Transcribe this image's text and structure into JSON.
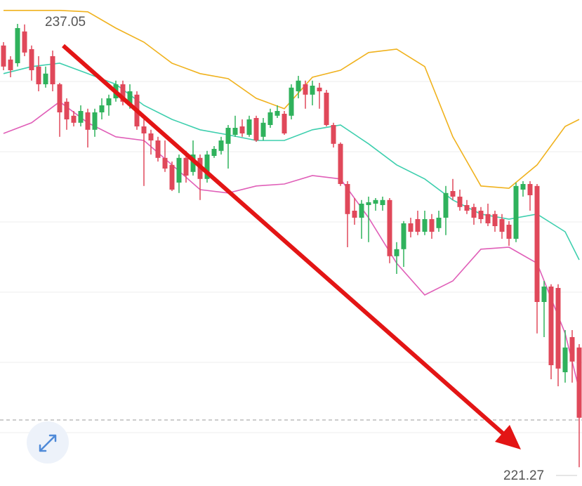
{
  "chart_data": {
    "type": "candlestick",
    "open": [
      236.28,
      235.78,
      235.65,
      236.78,
      236.15,
      235.53,
      234.9,
      235.9,
      234.9,
      234.28,
      233.78,
      233.53,
      233.9,
      233.28,
      233.9,
      234.15,
      234.4,
      234.9,
      234.15,
      234.53,
      233.4,
      233.15,
      232.9,
      232.28,
      232.03,
      231.4,
      232.28,
      231.78,
      232.28,
      231.53,
      232.35,
      232.53,
      232.78,
      233.1,
      233.4,
      233.1,
      233.7,
      233.03,
      233.45,
      233.78,
      233.85,
      233.78,
      234.65,
      234.9,
      234.53,
      234.78,
      234.6,
      233.45,
      232.78,
      231.35,
      230.4,
      230.15,
      230.6,
      230.65,
      230.6,
      230.78,
      228.78,
      229.03,
      229.95,
      230.1,
      229.65,
      230.1,
      229.78,
      230.15,
      231.1,
      230.9,
      230.6,
      230.53,
      230.4,
      230.28,
      230.28,
      230.1,
      229.9,
      229.4,
      231.15,
      231.35,
      231.28,
      227.15,
      227.7,
      227.65,
      224.65,
      225.9,
      225.53
    ],
    "high": [
      236.4,
      235.9,
      237.05,
      237.03,
      236.28,
      235.9,
      235.53,
      236.1,
      234.95,
      234.4,
      233.95,
      234.15,
      234.03,
      234.03,
      234.4,
      234.53,
      235.03,
      235.03,
      234.9,
      234.65,
      233.65,
      233.28,
      233.03,
      232.9,
      232.15,
      232.4,
      232.53,
      232.9,
      232.4,
      232.53,
      232.7,
      233.03,
      233.45,
      233.78,
      233.65,
      233.78,
      233.78,
      233.7,
      234.03,
      234.15,
      233.95,
      234.9,
      235.2,
      235.03,
      235.03,
      234.95,
      234.7,
      233.53,
      232.83,
      231.45,
      230.85,
      230.78,
      230.9,
      230.85,
      230.9,
      230.85,
      229.28,
      230.03,
      230.15,
      230.4,
      230.4,
      230.28,
      230.4,
      231.28,
      231.53,
      231.15,
      230.78,
      230.65,
      230.53,
      230.65,
      230.4,
      230.28,
      230.03,
      231.4,
      231.45,
      231.45,
      231.35,
      227.9,
      227.78,
      227.78,
      226.15,
      226.15,
      225.65
    ],
    "low": [
      235.4,
      235.15,
      235.53,
      235.9,
      235.03,
      234.65,
      234.78,
      234.65,
      233.03,
      233.28,
      233.4,
      233.4,
      232.65,
      233.03,
      233.65,
      233.78,
      234.28,
      234.15,
      234.03,
      233.28,
      231.28,
      232.4,
      232.15,
      231.78,
      231.1,
      231.03,
      231.4,
      231.65,
      230.78,
      231.4,
      232.28,
      232.4,
      231.9,
      233.03,
      233.03,
      233.03,
      232.85,
      232.9,
      233.35,
      233.7,
      233.1,
      233.65,
      234.4,
      234.03,
      234.15,
      234.03,
      233.4,
      232.65,
      231.28,
      229.1,
      229.9,
      229.4,
      229.28,
      230.4,
      230.4,
      228.53,
      228.15,
      228.4,
      229.45,
      229.53,
      229.53,
      229.4,
      229.65,
      229.53,
      230.78,
      230.4,
      230.28,
      229.9,
      229.95,
      229.85,
      229.65,
      229.4,
      229.15,
      229.28,
      230.9,
      230.4,
      226.03,
      225.9,
      224.4,
      224.15,
      224.28,
      224.28,
      221.27
    ],
    "close": [
      235.53,
      235.4,
      236.9,
      236.03,
      235.4,
      234.9,
      235.28,
      234.9,
      233.9,
      233.65,
      233.53,
      233.95,
      233.28,
      233.9,
      234.15,
      234.4,
      234.9,
      234.28,
      234.65,
      233.4,
      233.15,
      232.9,
      232.28,
      231.9,
      231.15,
      232.28,
      231.65,
      232.4,
      231.53,
      232.4,
      232.6,
      232.9,
      233.35,
      233.35,
      233.15,
      233.65,
      232.9,
      233.53,
      233.9,
      233.95,
      233.15,
      234.78,
      235.03,
      234.53,
      234.85,
      234.65,
      233.45,
      232.78,
      231.35,
      230.28,
      230.15,
      230.65,
      230.7,
      230.78,
      230.78,
      228.78,
      229.03,
      229.95,
      229.65,
      229.65,
      230.1,
      229.65,
      230.15,
      231.03,
      230.9,
      230.53,
      230.4,
      230.15,
      230.1,
      229.95,
      229.85,
      229.65,
      229.4,
      231.28,
      231.35,
      230.95,
      227.15,
      227.7,
      224.9,
      224.78,
      225.53,
      225.03,
      223.03
    ],
    "up_color": "#2fb25c",
    "down_color": "#e0485a",
    "bands": [
      {
        "color": "#f0b21e",
        "x": [
          0,
          4,
          8,
          12,
          16,
          20,
          24,
          28,
          32,
          36,
          40,
          44,
          48,
          52,
          56,
          60,
          64,
          68,
          72,
          76,
          80,
          82
        ],
        "values": [
          237.53,
          237.53,
          237.53,
          237.48,
          236.9,
          236.4,
          235.65,
          235.28,
          235.1,
          234.4,
          234.03,
          235.15,
          235.4,
          236.03,
          236.15,
          235.53,
          233.03,
          231.28,
          231.2,
          232.03,
          233.4,
          233.65
        ]
      },
      {
        "color": "#3ecfae",
        "x": [
          0,
          4,
          8,
          12,
          16,
          20,
          24,
          28,
          32,
          36,
          40,
          44,
          48,
          52,
          56,
          60,
          64,
          68,
          72,
          76,
          80,
          82
        ],
        "values": [
          235.28,
          235.53,
          235.65,
          235.28,
          234.9,
          234.15,
          233.65,
          233.28,
          233.1,
          232.9,
          232.9,
          233.28,
          233.45,
          232.78,
          232.03,
          231.53,
          230.78,
          230.28,
          230.1,
          230.28,
          229.65,
          228.65
        ]
      },
      {
        "color": "#e05fb8",
        "x": [
          0,
          4,
          8,
          12,
          16,
          20,
          24,
          28,
          32,
          36,
          40,
          44,
          48,
          52,
          56,
          60,
          64,
          68,
          72,
          76,
          80,
          82
        ],
        "values": [
          233.15,
          233.53,
          234.28,
          233.53,
          233.03,
          232.9,
          232.03,
          231.15,
          231.03,
          231.28,
          231.35,
          231.65,
          231.53,
          230.15,
          228.53,
          227.4,
          227.9,
          229.03,
          229.1,
          228.53,
          226.03,
          224.03
        ]
      }
    ],
    "ylim": [
      220.6,
      237.9
    ],
    "yticks": [
      235,
      232.5,
      230,
      227.5,
      225,
      222.5
    ],
    "grid": true,
    "price_line": 222.95
  }
}
